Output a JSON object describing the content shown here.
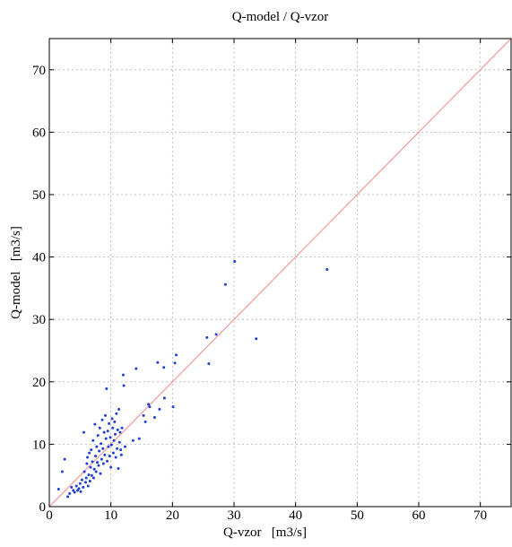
{
  "chart_data": {
    "type": "scatter",
    "title": "Q-model / Q-vzor",
    "xlabel": "Q-vzor   [m3/s]",
    "ylabel": "Q-model   [m3/s]",
    "xlim": [
      0,
      75
    ],
    "ylim": [
      0,
      75
    ],
    "xticks": [
      0,
      10,
      20,
      30,
      40,
      50,
      60,
      70
    ],
    "yticks": [
      0,
      10,
      20,
      30,
      40,
      50,
      60,
      70
    ],
    "grid": true,
    "reference_line": {
      "from": [
        0,
        0
      ],
      "to": [
        75,
        75
      ],
      "color": "#f4a0a0"
    },
    "point_color": "#1f3fd6",
    "series": [
      {
        "values": [
          [
            1.5,
            2.8
          ],
          [
            2.1,
            5.6
          ],
          [
            2.5,
            7.6
          ],
          [
            3.0,
            1.6
          ],
          [
            3.3,
            2.1
          ],
          [
            3.6,
            3.1
          ],
          [
            3.9,
            2.6
          ],
          [
            4.1,
            2.3
          ],
          [
            4.4,
            3.3
          ],
          [
            4.6,
            2.6
          ],
          [
            4.8,
            2.9
          ],
          [
            5.0,
            3.7
          ],
          [
            5.1,
            2.4
          ],
          [
            5.3,
            4.3
          ],
          [
            5.5,
            3.1
          ],
          [
            5.6,
            11.9
          ],
          [
            5.7,
            5.6
          ],
          [
            5.9,
            3.9
          ],
          [
            6.0,
            4.6
          ],
          [
            6.1,
            6.9
          ],
          [
            6.2,
            7.9
          ],
          [
            6.3,
            3.3
          ],
          [
            6.4,
            5.1
          ],
          [
            6.5,
            8.6
          ],
          [
            6.6,
            4.1
          ],
          [
            6.7,
            6.3
          ],
          [
            6.8,
            9.1
          ],
          [
            6.9,
            5.0
          ],
          [
            7.0,
            7.2
          ],
          [
            7.1,
            10.6
          ],
          [
            7.2,
            4.6
          ],
          [
            7.3,
            6.0
          ],
          [
            7.4,
            13.2
          ],
          [
            7.5,
            8.1
          ],
          [
            7.6,
            5.6
          ],
          [
            7.7,
            9.6
          ],
          [
            7.8,
            7.1
          ],
          [
            7.9,
            11.4
          ],
          [
            8.0,
            6.6
          ],
          [
            8.1,
            8.9
          ],
          [
            8.2,
            12.6
          ],
          [
            8.3,
            5.3
          ],
          [
            8.4,
            10.1
          ],
          [
            8.5,
            7.6
          ],
          [
            8.6,
            13.9
          ],
          [
            8.7,
            9.3
          ],
          [
            8.8,
            6.9
          ],
          [
            8.9,
            11.9
          ],
          [
            9.0,
            8.3
          ],
          [
            9.1,
            14.6
          ],
          [
            9.2,
            10.9
          ],
          [
            9.3,
            18.9
          ],
          [
            9.4,
            7.3
          ],
          [
            9.5,
            12.1
          ],
          [
            9.6,
            9.6
          ],
          [
            9.7,
            13.3
          ],
          [
            9.8,
            8.1
          ],
          [
            9.9,
            11.1
          ],
          [
            10.0,
            6.3
          ],
          [
            10.1,
            9.9
          ],
          [
            10.2,
            14.1
          ],
          [
            10.3,
            12.6
          ],
          [
            10.4,
            8.6
          ],
          [
            10.5,
            10.6
          ],
          [
            10.6,
            13.6
          ],
          [
            10.7,
            11.6
          ],
          [
            10.8,
            7.9
          ],
          [
            10.9,
            14.9
          ],
          [
            11.0,
            9.3
          ],
          [
            11.1,
            12.3
          ],
          [
            11.2,
            6.1
          ],
          [
            11.3,
            15.6
          ],
          [
            11.4,
            10.3
          ],
          [
            11.5,
            11.9
          ],
          [
            11.6,
            9.1
          ],
          [
            11.7,
            8.3
          ],
          [
            11.8,
            12.6
          ],
          [
            12.0,
            21.1
          ],
          [
            12.1,
            19.4
          ],
          [
            12.3,
            9.6
          ],
          [
            13.6,
            10.6
          ],
          [
            14.1,
            22.1
          ],
          [
            14.6,
            10.9
          ],
          [
            15.3,
            14.6
          ],
          [
            15.6,
            13.6
          ],
          [
            16.1,
            16.4
          ],
          [
            16.3,
            16.0
          ],
          [
            17.1,
            14.3
          ],
          [
            17.6,
            23.1
          ],
          [
            17.9,
            15.6
          ],
          [
            18.6,
            22.3
          ],
          [
            18.7,
            17.4
          ],
          [
            20.1,
            16.0
          ],
          [
            20.4,
            23.0
          ],
          [
            20.6,
            24.3
          ],
          [
            25.6,
            27.1
          ],
          [
            25.9,
            22.9
          ],
          [
            27.1,
            27.6
          ],
          [
            28.6,
            35.6
          ],
          [
            30.1,
            39.3
          ],
          [
            33.6,
            26.9
          ],
          [
            45.1,
            38.0
          ]
        ]
      }
    ]
  }
}
